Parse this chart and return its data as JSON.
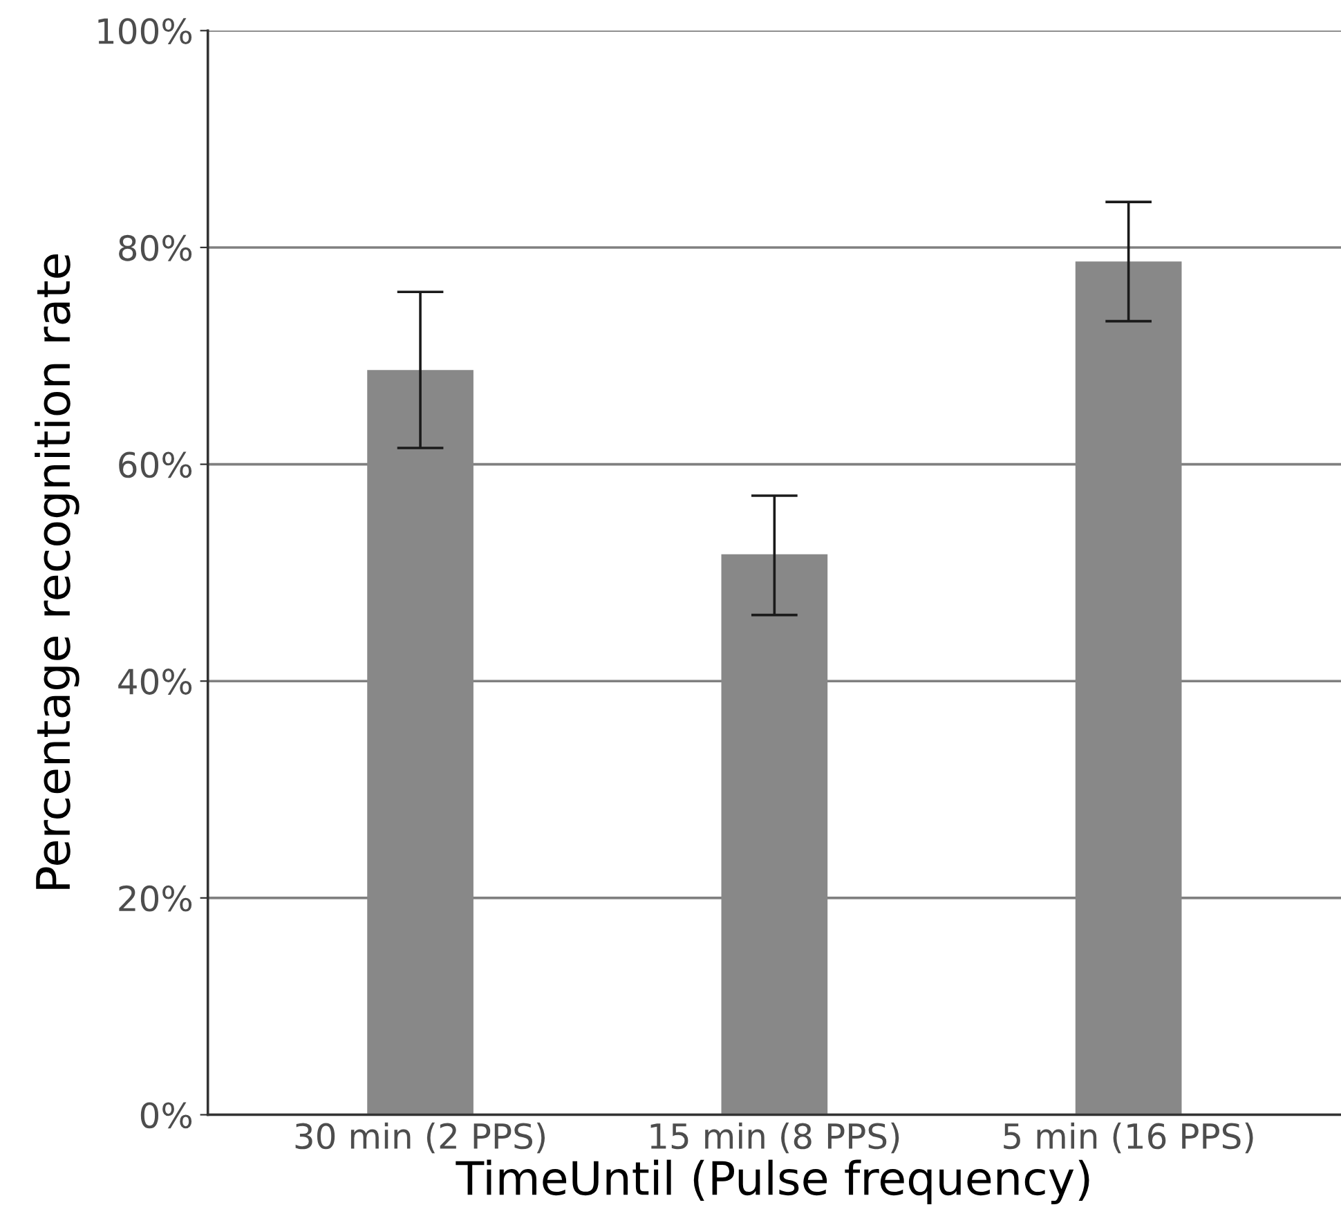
{
  "chart_data": {
    "type": "bar",
    "categories": [
      "30 min (2 PPS)",
      "15 min (8 PPS)",
      "5 min (16 PPS)"
    ],
    "values": [
      68.7,
      51.7,
      78.7
    ],
    "errors": [
      [
        61.5,
        75.9
      ],
      [
        46.1,
        57.1
      ],
      [
        73.2,
        84.2
      ]
    ],
    "color": "#888888",
    "xlabel": "TimeUntil (Pulse frequency)",
    "ylabel": "Percentage recognition rate",
    "ylim": [
      0,
      100
    ],
    "yticks": [
      {
        "value": 0,
        "label": "0%"
      },
      {
        "value": 20,
        "label": "20%"
      },
      {
        "value": 40,
        "label": "40%"
      },
      {
        "value": 60,
        "label": "60%"
      },
      {
        "value": 80,
        "label": "80%"
      },
      {
        "value": 100,
        "label": "100%"
      }
    ],
    "grid": "y"
  }
}
